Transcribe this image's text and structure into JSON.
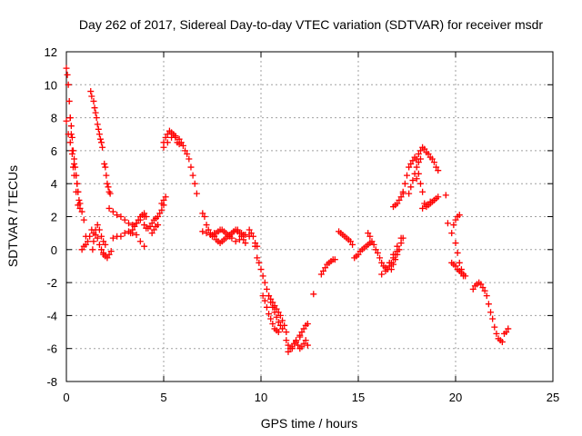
{
  "chart_data": {
    "type": "scatter",
    "title": "Day 262 of 2017, Sidereal Day-to-day VTEC variation (SDTVAR) for receiver msdr",
    "xlabel": "GPS time / hours",
    "ylabel": "SDTVAR / TECUs",
    "xlim": [
      0,
      25
    ],
    "ylim": [
      -8,
      12
    ],
    "xticks": [
      0,
      5,
      10,
      15,
      20,
      25
    ],
    "yticks": [
      -8,
      -6,
      -4,
      -2,
      0,
      2,
      4,
      6,
      8,
      10,
      12
    ],
    "grid": true,
    "marker": "+",
    "color": "#ff0000",
    "series": [
      {
        "name": "msdr",
        "x": [
          0.0,
          0.05,
          0.1,
          0.15,
          0.2,
          0.25,
          0.3,
          0.35,
          0.4,
          0.5,
          0.6,
          0.7,
          0.8,
          0.9,
          1.0
        ],
        "y": [
          11.0,
          10.6,
          10.0,
          9.0,
          8.0,
          7.0,
          6.0,
          5.0,
          4.5,
          3.5,
          2.7,
          2.5,
          2.3,
          1.8,
          0.8
        ]
      },
      {
        "name": "msdr",
        "x": [
          0.0,
          0.1,
          0.2,
          0.3,
          0.4,
          0.5,
          0.55,
          0.6,
          0.65,
          0.7
        ],
        "y": [
          7.8,
          7.0,
          6.5,
          5.8,
          5.2,
          4.5,
          4.0,
          3.5,
          3.0,
          2.8
        ]
      },
      {
        "name": "msdr",
        "x": [
          0.2,
          0.25,
          0.3,
          0.35,
          0.4,
          0.45,
          0.5,
          0.55,
          0.6
        ],
        "y": [
          8.0,
          7.5,
          6.8,
          6.0,
          5.5,
          5.0,
          4.5,
          4.0,
          3.5
        ]
      },
      {
        "name": "msdr",
        "x": [
          0.8,
          0.9,
          1.0,
          1.1,
          1.2,
          1.3,
          1.4,
          1.5,
          1.6,
          1.7,
          1.8,
          1.9
        ],
        "y": [
          0.0,
          0.2,
          0.3,
          0.5,
          0.8,
          1.2,
          1.0,
          0.9,
          0.7,
          0.3,
          0.0,
          -0.3
        ]
      },
      {
        "name": "msdr",
        "x": [
          1.25,
          1.3,
          1.4,
          1.45,
          1.5,
          1.55,
          1.6,
          1.65,
          1.7,
          1.75,
          1.8,
          1.85
        ],
        "y": [
          9.6,
          9.3,
          9.0,
          8.6,
          8.3,
          8.0,
          7.6,
          7.3,
          7.0,
          6.7,
          6.5,
          6.2
        ]
      },
      {
        "name": "msdr",
        "x": [
          1.35,
          1.4,
          1.5,
          1.6,
          1.7,
          1.8,
          1.9,
          2.0
        ],
        "y": [
          0.0,
          0.5,
          1.2,
          1.5,
          1.2,
          0.8,
          0.5,
          0.3
        ]
      },
      {
        "name": "msdr",
        "x": [
          1.9,
          2.0,
          2.1,
          2.2,
          2.3
        ],
        "y": [
          -0.2,
          -0.4,
          -0.5,
          -0.3,
          -0.1
        ]
      },
      {
        "name": "msdr",
        "x": [
          1.95,
          2.0,
          2.05,
          2.1,
          2.15,
          2.2,
          2.25
        ],
        "y": [
          5.2,
          5.0,
          4.5,
          4.0,
          3.8,
          3.5,
          3.4
        ]
      },
      {
        "name": "msdr",
        "x": [
          2.2,
          2.4,
          2.6,
          2.8,
          3.0,
          3.2,
          3.4,
          3.6,
          3.8,
          4.0
        ],
        "y": [
          2.5,
          2.3,
          2.1,
          2.0,
          1.8,
          1.6,
          1.5,
          1.6,
          1.8,
          2.0
        ]
      },
      {
        "name": "msdr",
        "x": [
          2.4,
          2.6,
          2.8,
          3.0,
          3.2,
          3.4,
          3.6,
          3.8,
          4.0
        ],
        "y": [
          0.7,
          0.8,
          0.8,
          1.0,
          1.1,
          1.0,
          0.9,
          0.5,
          0.2
        ]
      },
      {
        "name": "msdr",
        "x": [
          3.3,
          3.4,
          3.5,
          3.6,
          3.7,
          3.8,
          3.9,
          4.0,
          4.1
        ],
        "y": [
          1.0,
          1.2,
          1.4,
          1.6,
          1.8,
          2.0,
          2.1,
          2.2,
          2.0
        ]
      },
      {
        "name": "msdr",
        "x": [
          4.0,
          4.1,
          4.2,
          4.3,
          4.4,
          4.5,
          4.6,
          4.7,
          4.8,
          4.9,
          5.0
        ],
        "y": [
          1.5,
          1.3,
          1.3,
          1.4,
          1.6,
          1.8,
          1.9,
          2.0,
          2.2,
          2.4,
          2.7
        ]
      },
      {
        "name": "msdr",
        "x": [
          4.4,
          4.5,
          4.6,
          4.7
        ],
        "y": [
          1.0,
          1.2,
          1.4,
          1.5
        ]
      },
      {
        "name": "msdr",
        "x": [
          4.9,
          5.0,
          5.1
        ],
        "y": [
          2.8,
          3.0,
          3.2
        ]
      },
      {
        "name": "msdr",
        "x": [
          5.0,
          5.1,
          5.2,
          5.3,
          5.4,
          5.5,
          5.6,
          5.7,
          5.8,
          5.9,
          6.0,
          6.1,
          6.2,
          6.3,
          6.4,
          6.5,
          6.6,
          6.7
        ],
        "y": [
          6.5,
          6.8,
          7.0,
          7.2,
          7.1,
          7.0,
          6.8,
          6.5,
          6.4,
          6.5,
          6.3,
          6.0,
          5.8,
          5.5,
          5.0,
          4.5,
          4.0,
          3.4
        ]
      },
      {
        "name": "msdr",
        "x": [
          5.0,
          5.2,
          5.4,
          5.6,
          5.8
        ],
        "y": [
          6.2,
          6.5,
          6.8,
          6.9,
          6.7
        ]
      },
      {
        "name": "msdr",
        "x": [
          7.0,
          7.1,
          7.2,
          7.3,
          7.4,
          7.5,
          7.6,
          7.7,
          7.8,
          7.9,
          8.0,
          8.1,
          8.2,
          8.3,
          8.4,
          8.5,
          8.6,
          8.7,
          8.8,
          8.9,
          9.0,
          9.1,
          9.2
        ],
        "y": [
          2.2,
          2.0,
          1.5,
          1.2,
          1.0,
          0.9,
          0.8,
          0.6,
          0.5,
          0.4,
          0.5,
          0.6,
          0.7,
          0.8,
          0.9,
          1.0,
          1.1,
          1.2,
          1.1,
          1.0,
          0.8,
          0.6,
          0.4
        ]
      },
      {
        "name": "msdr",
        "x": [
          7.0,
          7.2,
          7.4,
          7.6,
          7.8,
          8.0,
          8.2,
          8.4,
          8.6,
          8.8,
          9.0,
          9.2,
          9.4
        ],
        "y": [
          1.1,
          1.0,
          0.9,
          1.0,
          1.1,
          1.2,
          1.0,
          0.8,
          1.1,
          1.2,
          1.0,
          0.9,
          0.8
        ]
      },
      {
        "name": "msdr",
        "x": [
          7.5,
          7.7,
          7.9,
          8.1,
          8.3,
          8.5,
          8.7,
          8.9,
          9.1
        ],
        "y": [
          0.8,
          1.0,
          1.2,
          1.1,
          0.9,
          0.7,
          0.5,
          0.6,
          0.9
        ]
      },
      {
        "name": "msdr",
        "x": [
          9.4,
          9.5,
          9.6,
          9.7,
          9.8
        ],
        "y": [
          1.2,
          1.0,
          0.8,
          0.4,
          0.2
        ]
      },
      {
        "name": "msdr",
        "x": [
          9.7,
          9.8,
          9.9,
          10.0,
          10.1,
          10.2,
          10.3,
          10.4,
          10.5,
          10.6,
          10.7,
          10.8,
          10.9,
          11.0,
          11.1
        ],
        "y": [
          0.2,
          -0.5,
          -0.8,
          -1.2,
          -1.6,
          -2.0,
          -2.4,
          -2.8,
          -3.2,
          -3.5,
          -3.8,
          -4.1,
          -4.4,
          -4.6,
          -4.8
        ]
      },
      {
        "name": "msdr",
        "x": [
          10.1,
          10.2,
          10.3,
          10.4,
          10.5,
          10.6,
          10.7,
          10.8,
          10.9
        ],
        "y": [
          -2.8,
          -3.1,
          -3.5,
          -3.9,
          -4.2,
          -4.5,
          -4.8,
          -4.9,
          -5.0
        ]
      },
      {
        "name": "msdr",
        "x": [
          10.4,
          10.5,
          10.6,
          10.7,
          10.8,
          10.9,
          11.0,
          11.1,
          11.2,
          11.3
        ],
        "y": [
          -2.8,
          -3.0,
          -3.2,
          -3.4,
          -3.6,
          -3.8,
          -4.0,
          -4.3,
          -4.6,
          -5.0
        ]
      },
      {
        "name": "msdr",
        "x": [
          11.3,
          11.4,
          11.5,
          11.6,
          11.7,
          11.8,
          11.9,
          12.0,
          12.1,
          12.2,
          12.3,
          12.4
        ],
        "y": [
          -5.5,
          -5.8,
          -6.0,
          -5.9,
          -5.7,
          -5.6,
          -5.8,
          -6.0,
          -5.9,
          -5.7,
          -5.5,
          -5.8
        ]
      },
      {
        "name": "msdr",
        "x": [
          11.4,
          11.6,
          11.8,
          12.0
        ],
        "y": [
          -6.2,
          -6.0,
          -5.5,
          -5.3
        ]
      },
      {
        "name": "msdr",
        "x": [
          12.0,
          12.1,
          12.2,
          12.3,
          12.4
        ],
        "y": [
          -5.2,
          -5.0,
          -4.8,
          -4.6,
          -4.5
        ]
      },
      {
        "name": "msdr",
        "x": [
          12.7
        ],
        "y": [
          -2.7
        ]
      },
      {
        "name": "msdr",
        "x": [
          13.1,
          13.2,
          13.3,
          13.4,
          13.5,
          13.6,
          13.7,
          13.8
        ],
        "y": [
          -1.5,
          -1.3,
          -1.1,
          -0.9,
          -0.8,
          -0.7,
          -0.6,
          -0.6
        ]
      },
      {
        "name": "msdr",
        "x": [
          14.0,
          14.1,
          14.2,
          14.3,
          14.4,
          14.5,
          14.6,
          14.7
        ],
        "y": [
          1.1,
          1.0,
          0.9,
          0.8,
          0.7,
          0.6,
          0.5,
          0.3
        ]
      },
      {
        "name": "msdr",
        "x": [
          14.8,
          14.9,
          15.0,
          15.1,
          15.2,
          15.3,
          15.4,
          15.5,
          15.6
        ],
        "y": [
          -0.5,
          -0.4,
          -0.3,
          -0.1,
          0.0,
          0.1,
          0.2,
          0.3,
          0.4
        ]
      },
      {
        "name": "msdr",
        "x": [
          15.5,
          15.6,
          15.7,
          15.8,
          15.9,
          16.0,
          16.1,
          16.2,
          16.3,
          16.4,
          16.5,
          16.6,
          16.7,
          16.8,
          16.9,
          17.0
        ],
        "y": [
          1.0,
          0.8,
          0.5,
          0.3,
          0.0,
          -0.2,
          -0.5,
          -0.8,
          -1.0,
          -1.1,
          -1.2,
          -1.0,
          -0.8,
          -0.5,
          -0.3,
          -0.1
        ]
      },
      {
        "name": "msdr",
        "x": [
          16.2,
          16.4,
          16.6,
          16.8,
          17.0,
          17.2
        ],
        "y": [
          -1.5,
          -1.3,
          -0.8,
          -0.3,
          0.2,
          0.7
        ]
      },
      {
        "name": "msdr",
        "x": [
          16.7,
          16.8,
          16.9,
          17.0,
          17.1,
          17.2,
          17.3
        ],
        "y": [
          -1.2,
          -0.9,
          -0.6,
          -0.3,
          0.0,
          0.4,
          0.7
        ]
      },
      {
        "name": "msdr",
        "x": [
          16.8,
          16.9,
          17.0,
          17.1,
          17.2,
          17.3
        ],
        "y": [
          2.6,
          2.7,
          2.8,
          3.0,
          3.2,
          3.4
        ]
      },
      {
        "name": "msdr",
        "x": [
          17.3,
          17.4,
          17.5,
          17.6,
          17.7,
          17.8,
          17.9,
          18.0,
          18.1,
          18.2,
          18.3,
          18.4,
          18.5,
          18.6,
          18.7,
          18.8,
          18.9,
          19.0,
          19.1
        ],
        "y": [
          3.5,
          4.0,
          4.5,
          5.0,
          5.2,
          5.4,
          5.6,
          5.5,
          5.8,
          6.0,
          6.2,
          6.1,
          5.9,
          5.8,
          5.6,
          5.5,
          5.3,
          5.0,
          4.8
        ]
      },
      {
        "name": "msdr",
        "x": [
          17.6,
          17.7,
          17.8,
          17.9,
          18.0,
          18.1,
          18.2
        ],
        "y": [
          3.4,
          3.8,
          4.2,
          4.6,
          5.0,
          5.3,
          5.5
        ]
      },
      {
        "name": "msdr",
        "x": [
          18.0,
          18.1,
          18.2,
          18.3,
          18.4,
          18.5,
          18.6,
          18.7,
          18.8,
          18.9,
          19.0,
          19.1
        ],
        "y": [
          4.3,
          4.6,
          4.0,
          3.5,
          2.8,
          2.6,
          2.7,
          2.8,
          2.9,
          3.0,
          3.1,
          3.2
        ]
      },
      {
        "name": "msdr",
        "x": [
          18.3,
          18.5,
          18.7,
          18.9
        ],
        "y": [
          2.5,
          2.7,
          2.9,
          3.0
        ]
      },
      {
        "name": "msdr",
        "x": [
          19.5
        ],
        "y": [
          3.3
        ]
      },
      {
        "name": "msdr",
        "x": [
          19.6,
          19.8,
          20.0,
          20.1,
          20.2,
          20.3,
          20.4
        ],
        "y": [
          1.6,
          1.0,
          0.4,
          -0.2,
          -0.8,
          -1.2,
          -1.6
        ]
      },
      {
        "name": "msdr",
        "x": [
          19.8,
          19.9,
          20.0,
          20.1,
          20.2,
          20.3,
          20.4,
          20.5
        ],
        "y": [
          -0.8,
          -0.9,
          -1.0,
          -1.2,
          -1.3,
          -1.4,
          -1.5,
          -1.6
        ]
      },
      {
        "name": "msdr",
        "x": [
          19.9,
          20.0,
          20.1,
          20.2
        ],
        "y": [
          1.5,
          1.8,
          2.0,
          2.1
        ]
      },
      {
        "name": "msdr",
        "x": [
          20.9,
          21.0,
          21.1,
          21.2,
          21.3,
          21.4,
          21.5,
          21.6,
          21.7,
          21.8,
          21.9,
          22.0,
          22.1,
          22.2,
          22.3,
          22.4
        ],
        "y": [
          -2.4,
          -2.2,
          -2.1,
          -2.0,
          -2.1,
          -2.3,
          -2.5,
          -2.8,
          -3.3,
          -3.8,
          -4.2,
          -4.7,
          -5.1,
          -5.4,
          -5.5,
          -5.6
        ]
      },
      {
        "name": "msdr",
        "x": [
          22.5,
          22.6,
          22.7
        ],
        "y": [
          -5.1,
          -5.0,
          -4.8
        ]
      }
    ]
  }
}
